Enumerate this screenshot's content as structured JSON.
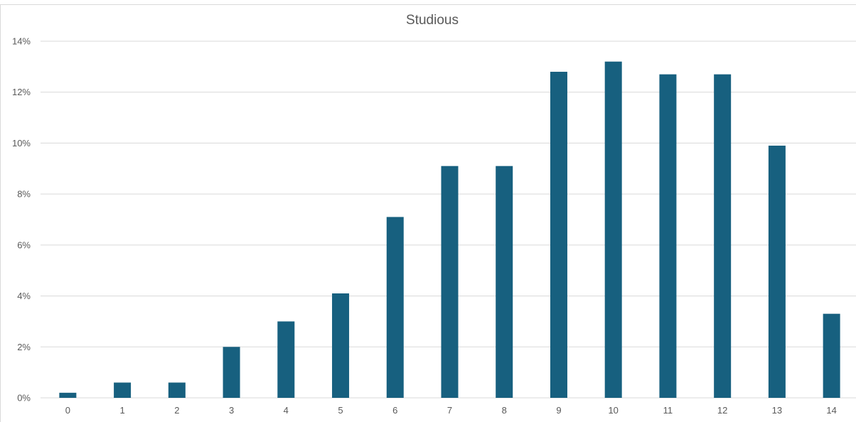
{
  "chart_data": {
    "type": "bar",
    "title": "Studious",
    "xlabel": "",
    "ylabel": "",
    "categories": [
      "0",
      "1",
      "2",
      "3",
      "4",
      "5",
      "6",
      "7",
      "8",
      "9",
      "10",
      "11",
      "12",
      "13",
      "14"
    ],
    "values": [
      0.2,
      0.6,
      0.6,
      2.0,
      3.0,
      4.1,
      7.1,
      9.1,
      9.1,
      12.8,
      13.2,
      12.7,
      12.7,
      9.9,
      3.3
    ],
    "ylim": [
      0,
      14
    ],
    "yticks": [
      0,
      2,
      4,
      6,
      8,
      10,
      12,
      14
    ],
    "ytick_labels": [
      "0%",
      "2%",
      "4%",
      "6%",
      "8%",
      "10%",
      "12%",
      "14%"
    ],
    "value_format": "percent",
    "grid": true,
    "legend": "none",
    "bar_color": "#17607f",
    "grid_color": "#d9d9d9",
    "text_color": "#595959"
  }
}
